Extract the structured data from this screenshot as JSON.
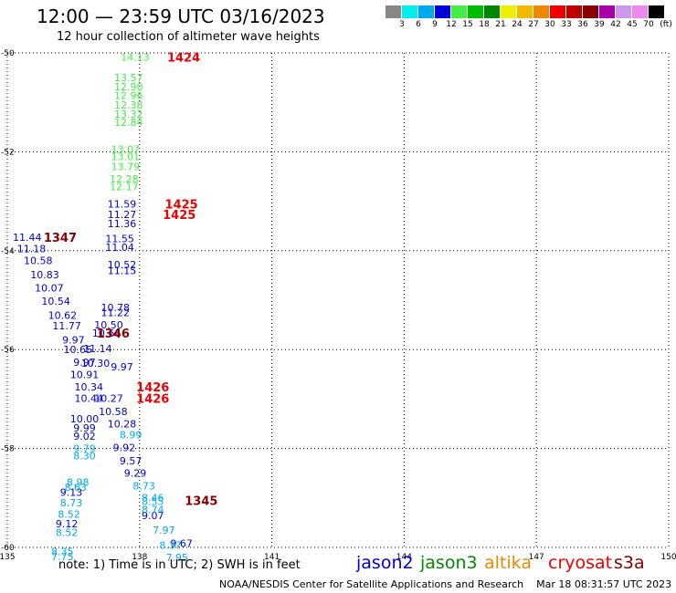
{
  "header": {
    "title": "12:00 — 23:59 UTC 03/16/2023",
    "subtitle": "12 hour collection of altimeter wave heights"
  },
  "legend": {
    "unit": "(ft)",
    "bins": [
      {
        "label": "3",
        "color": "#888888"
      },
      {
        "label": "6",
        "color": "#00eeee"
      },
      {
        "label": "9",
        "color": "#00aaee"
      },
      {
        "label": "12",
        "color": "#0000dd"
      },
      {
        "label": "15",
        "color": "#44ee44"
      },
      {
        "label": "18",
        "color": "#00bb00"
      },
      {
        "label": "21",
        "color": "#008800"
      },
      {
        "label": "24",
        "color": "#eeee00"
      },
      {
        "label": "27",
        "color": "#eebb00"
      },
      {
        "label": "30",
        "color": "#ee8800"
      },
      {
        "label": "33",
        "color": "#ee0000"
      },
      {
        "label": "36",
        "color": "#bb0000"
      },
      {
        "label": "39",
        "color": "#880000"
      },
      {
        "label": "42",
        "color": "#aa00aa"
      },
      {
        "label": "45",
        "color": "#cc99ee"
      },
      {
        "label": "70",
        "color": "#ee88ee"
      },
      {
        "label": "",
        "color": "#000000"
      }
    ]
  },
  "note": "note: 1) Time is in UTC; 2) SWH is in feet",
  "satellites": [
    {
      "name": "jason2",
      "color": "#0000dd"
    },
    {
      "name": "jason3",
      "color": "#008800"
    },
    {
      "name": "altika",
      "color": "#ee8800"
    },
    {
      "name": "cryosat",
      "color": "#ee0000"
    },
    {
      "name": "s3a",
      "color": "#880000"
    }
  ],
  "footer": "NOAA/NESDIS Center for Satellite Applications and Research    Mar 18 08:31:57 UTC 2023",
  "chart_data": {
    "type": "scatter",
    "xlim": [
      135,
      150
    ],
    "ylim": [
      -60,
      -50
    ],
    "xticks": [
      135,
      138,
      141,
      144,
      147,
      150
    ],
    "yticks": [
      -50,
      -52,
      -54,
      -56,
      -58,
      -60
    ],
    "grid": true,
    "points": [
      {
        "lon": 137.9,
        "lat": -50.08,
        "label": "14.13",
        "color": "#44ee44"
      },
      {
        "lon": 137.75,
        "lat": -50.5,
        "label": "13.57",
        "color": "#44ee44"
      },
      {
        "lon": 137.75,
        "lat": -50.68,
        "label": "12.90",
        "color": "#44ee44"
      },
      {
        "lon": 137.75,
        "lat": -50.86,
        "label": "12.96",
        "color": "#44ee44"
      },
      {
        "lon": 137.75,
        "lat": -51.05,
        "label": "12.38",
        "color": "#44ee44"
      },
      {
        "lon": 137.75,
        "lat": -51.24,
        "label": "13.32",
        "color": "#44ee44"
      },
      {
        "lon": 137.75,
        "lat": -51.4,
        "label": "12.84",
        "color": "#44ee44"
      },
      {
        "lon": 137.68,
        "lat": -51.95,
        "label": "13.07",
        "color": "#44ee44"
      },
      {
        "lon": 137.68,
        "lat": -52.09,
        "label": "13.01",
        "color": "#44ee44"
      },
      {
        "lon": 137.68,
        "lat": -52.3,
        "label": "13.79",
        "color": "#44ee44"
      },
      {
        "lon": 137.65,
        "lat": -52.55,
        "label": "12.28",
        "color": "#44ee44"
      },
      {
        "lon": 137.65,
        "lat": -52.7,
        "label": "12.17",
        "color": "#44ee44"
      },
      {
        "lon": 137.6,
        "lat": -53.05,
        "label": "11.59",
        "color": "#0000dd"
      },
      {
        "lon": 137.6,
        "lat": -53.27,
        "label": "11.27",
        "color": "#0000dd"
      },
      {
        "lon": 137.6,
        "lat": -53.45,
        "label": "11.36",
        "color": "#0000dd"
      },
      {
        "lon": 137.55,
        "lat": -53.75,
        "label": "11.55",
        "color": "#0000dd"
      },
      {
        "lon": 137.55,
        "lat": -53.93,
        "label": "11.04",
        "color": "#0000dd"
      },
      {
        "lon": 135.45,
        "lat": -53.73,
        "label": "11.44",
        "color": "#0000dd"
      },
      {
        "lon": 135.55,
        "lat": -53.96,
        "label": "11.18",
        "color": "#0000dd"
      },
      {
        "lon": 135.7,
        "lat": -54.2,
        "label": "10.58",
        "color": "#0000dd"
      },
      {
        "lon": 135.85,
        "lat": -54.48,
        "label": "10.83",
        "color": "#0000dd"
      },
      {
        "lon": 135.95,
        "lat": -54.75,
        "label": "10.07",
        "color": "#0000dd"
      },
      {
        "lon": 136.1,
        "lat": -55.02,
        "label": "10.54",
        "color": "#0000dd"
      },
      {
        "lon": 136.25,
        "lat": -55.3,
        "label": "10.62",
        "color": "#0000dd"
      },
      {
        "lon": 136.35,
        "lat": -55.52,
        "label": "11.77",
        "color": "#0000dd"
      },
      {
        "lon": 136.5,
        "lat": -55.8,
        "label": "9.97",
        "color": "#0000dd"
      },
      {
        "lon": 136.6,
        "lat": -56.0,
        "label": "10.65",
        "color": "#0000dd"
      },
      {
        "lon": 136.75,
        "lat": -56.25,
        "label": "9.97",
        "color": "#0000dd"
      },
      {
        "lon": 136.75,
        "lat": -56.5,
        "label": "10.91",
        "color": "#0000dd"
      },
      {
        "lon": 136.85,
        "lat": -56.75,
        "label": "10.34",
        "color": "#0000dd"
      },
      {
        "lon": 136.85,
        "lat": -56.98,
        "label": "10.44",
        "color": "#0000dd"
      },
      {
        "lon": 136.75,
        "lat": -57.4,
        "label": "10.00",
        "color": "#0000dd"
      },
      {
        "lon": 136.75,
        "lat": -57.58,
        "label": "9.99",
        "color": "#0000dd"
      },
      {
        "lon": 136.75,
        "lat": -57.75,
        "label": "9.02",
        "color": "#0000dd"
      },
      {
        "lon": 136.45,
        "lat": -58.88,
        "label": "9.13",
        "color": "#0000dd"
      },
      {
        "lon": 136.35,
        "lat": -59.52,
        "label": "9.12",
        "color": "#0000dd"
      },
      {
        "lon": 137.45,
        "lat": -55.15,
        "label": "10.78",
        "color": "#0000dd"
      },
      {
        "lon": 137.45,
        "lat": -55.25,
        "label": "11.22",
        "color": "#0000dd"
      },
      {
        "lon": 137.3,
        "lat": -55.5,
        "label": "10.50",
        "color": "#0000dd"
      },
      {
        "lon": 137.25,
        "lat": -55.66,
        "label": "10.66",
        "color": "#0000dd"
      },
      {
        "lon": 137.0,
        "lat": -56.27,
        "label": "10.30",
        "color": "#0000dd"
      },
      {
        "lon": 137.05,
        "lat": -55.98,
        "label": "11.14",
        "color": "#0000dd"
      },
      {
        "lon": 137.3,
        "lat": -56.98,
        "label": "10.27",
        "color": "#0000dd"
      },
      {
        "lon": 137.4,
        "lat": -57.25,
        "label": "10.58",
        "color": "#0000dd"
      },
      {
        "lon": 137.6,
        "lat": -57.5,
        "label": "10.28",
        "color": "#0000dd"
      },
      {
        "lon": 137.6,
        "lat": -54.28,
        "label": "10.52",
        "color": "#0000dd"
      },
      {
        "lon": 137.6,
        "lat": -54.4,
        "label": "11.15",
        "color": "#0000dd"
      },
      {
        "lon": 137.6,
        "lat": -56.35,
        "label": "9.97",
        "color": "#0000dd"
      },
      {
        "lon": 137.65,
        "lat": -57.98,
        "label": "9.92",
        "color": "#0000dd"
      },
      {
        "lon": 137.8,
        "lat": -58.25,
        "label": "9.57",
        "color": "#0000dd"
      },
      {
        "lon": 137.9,
        "lat": -58.5,
        "label": "9.29",
        "color": "#0000dd"
      },
      {
        "lon": 138.3,
        "lat": -59.35,
        "label": "9.07",
        "color": "#0000dd"
      },
      {
        "lon": 138.95,
        "lat": -59.92,
        "label": "9.67",
        "color": "#0000dd"
      },
      {
        "lon": 137.8,
        "lat": -57.72,
        "label": "8.99",
        "color": "#00aaee"
      },
      {
        "lon": 136.75,
        "lat": -58.0,
        "label": "9.79",
        "color": "#00aaee"
      },
      {
        "lon": 136.75,
        "lat": -58.15,
        "label": "8.30",
        "color": "#00aaee"
      },
      {
        "lon": 136.6,
        "lat": -58.68,
        "label": "8.98",
        "color": "#00aaee"
      },
      {
        "lon": 136.55,
        "lat": -58.78,
        "label": "8.63",
        "color": "#00aaee"
      },
      {
        "lon": 136.4,
        "lat": -59.33,
        "label": "8.52",
        "color": "#00aaee"
      },
      {
        "lon": 136.45,
        "lat": -59.1,
        "label": "8.73",
        "color": "#00aaee"
      },
      {
        "lon": 136.35,
        "lat": -59.7,
        "label": "8.52",
        "color": "#00aaee"
      },
      {
        "lon": 136.25,
        "lat": -60.08,
        "label": "8.35",
        "color": "#00aaee"
      },
      {
        "lon": 136.25,
        "lat": -60.18,
        "label": "7.75",
        "color": "#00aaee"
      },
      {
        "lon": 138.1,
        "lat": -58.75,
        "label": "8.73",
        "color": "#00aaee"
      },
      {
        "lon": 138.3,
        "lat": -58.99,
        "label": "8.46",
        "color": "#00aaee"
      },
      {
        "lon": 138.3,
        "lat": -59.07,
        "label": "8.55",
        "color": "#00aaee"
      },
      {
        "lon": 138.3,
        "lat": -59.23,
        "label": "8.74",
        "color": "#00aaee"
      },
      {
        "lon": 138.55,
        "lat": -59.65,
        "label": "7.97",
        "color": "#00aaee"
      },
      {
        "lon": 138.7,
        "lat": -59.95,
        "label": "8.37",
        "color": "#00aaee"
      },
      {
        "lon": 138.85,
        "lat": -60.2,
        "label": "7.95",
        "color": "#00aaee"
      }
    ],
    "passes": [
      {
        "lon": 139.0,
        "lat": -50.08,
        "label": "1424",
        "color": "#ee0000"
      },
      {
        "lon": 138.95,
        "lat": -53.05,
        "label": "1425",
        "color": "#ee0000"
      },
      {
        "lon": 138.9,
        "lat": -53.27,
        "label": "1425",
        "color": "#ee0000"
      },
      {
        "lon": 136.2,
        "lat": -53.73,
        "label": "1347",
        "color": "#880000"
      },
      {
        "lon": 137.4,
        "lat": -55.66,
        "label": "1346",
        "color": "#880000"
      },
      {
        "lon": 138.3,
        "lat": -56.75,
        "label": "1426",
        "color": "#ee0000"
      },
      {
        "lon": 138.3,
        "lat": -56.98,
        "label": "1426",
        "color": "#ee0000"
      },
      {
        "lon": 139.4,
        "lat": -59.05,
        "label": "1345",
        "color": "#880000"
      }
    ]
  }
}
